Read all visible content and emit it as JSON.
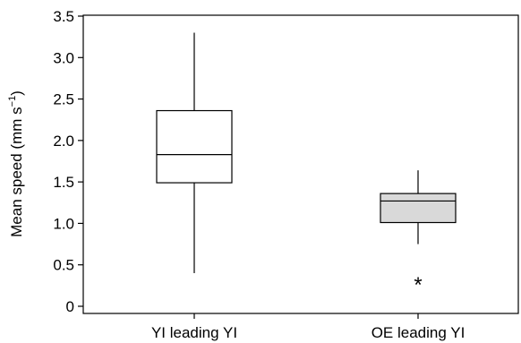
{
  "chart_data": {
    "type": "box",
    "ylabel": "Mean speed (mm s",
    "ylabel_sup": "−1",
    "ylabel_close": ")",
    "ylim": [
      0,
      3.5
    ],
    "yticks": [
      0,
      0.5,
      1.0,
      1.5,
      2.0,
      2.5,
      3.0,
      3.5
    ],
    "ytick_labels": [
      "0",
      "0.5",
      "1.0",
      "1.5",
      "2.0",
      "2.5",
      "3.0",
      "3.5"
    ],
    "categories": [
      "YI leading YI",
      "OE leading YI"
    ],
    "boxes": [
      {
        "category": "YI leading YI",
        "whisker_low": 0.4,
        "q1": 1.49,
        "median": 1.83,
        "q3": 2.36,
        "whisker_high": 3.3,
        "outliers": [],
        "fill": "#ffffff"
      },
      {
        "category": "OE leading YI",
        "whisker_low": 0.75,
        "q1": 1.01,
        "median": 1.27,
        "q3": 1.36,
        "whisker_high": 1.64,
        "outliers": [
          0.3
        ],
        "fill": "#d9d9d9"
      }
    ],
    "outlier_marker": "*",
    "grid": false
  }
}
